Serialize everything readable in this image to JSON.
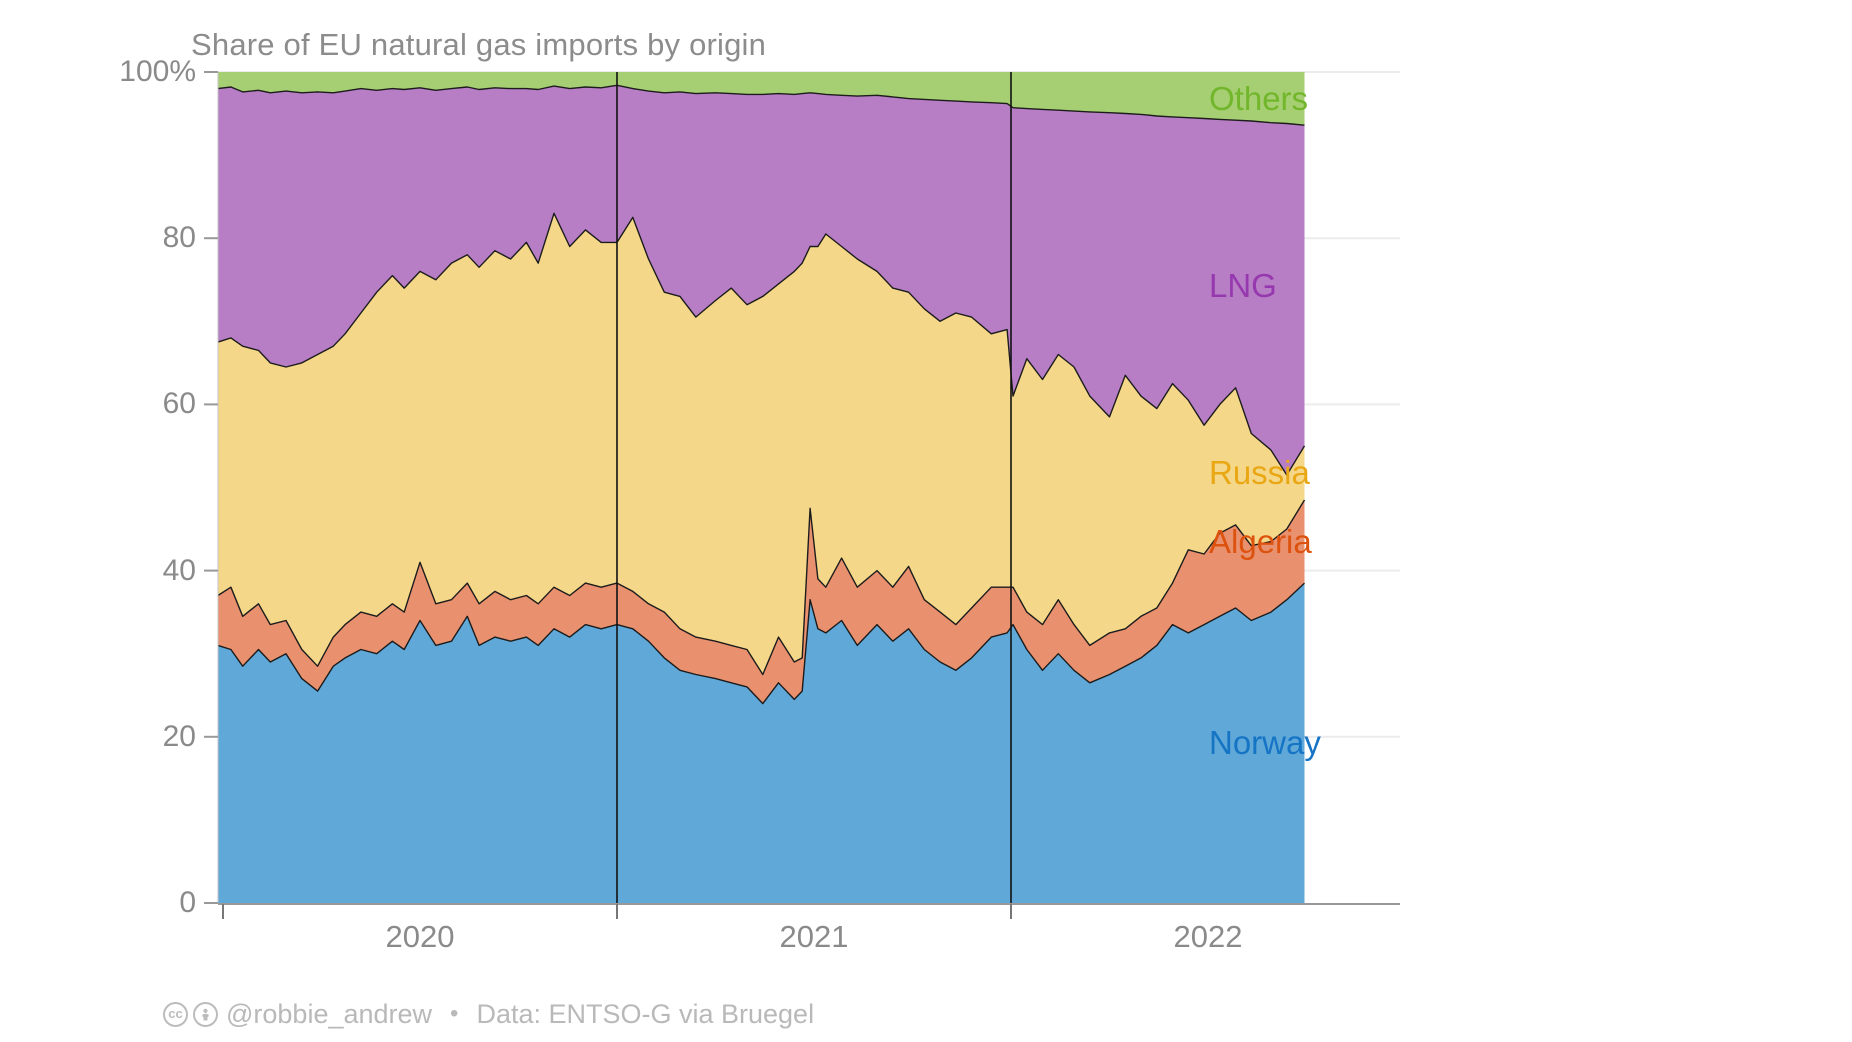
{
  "title": "Share of EU natural gas imports by origin",
  "footer": {
    "cc_label": "cc",
    "handle": "@robbie_andrew",
    "separator": "•",
    "source": "Data: ENTSO-G via Bruegel"
  },
  "colors": {
    "title_text": "#8c8c8c",
    "axis_text": "#8a8a8a",
    "footer_text": "#b9b9b9",
    "gridline": "#ececec",
    "axis_line": "#999999",
    "boundary_stroke": "#1c1c1c",
    "year_divider": "#111111"
  },
  "chart_data": {
    "type": "area",
    "stacked": true,
    "title": "Share of EU natural gas imports by origin",
    "ylabel": "%",
    "ylim": [
      0,
      100
    ],
    "xlim": [
      2019.987,
      2022.745
    ],
    "grid": true,
    "legend_position": "right",
    "yticks": [
      {
        "label": "0",
        "value": 0
      },
      {
        "label": "20",
        "value": 20
      },
      {
        "label": "40",
        "value": 40
      },
      {
        "label": "60",
        "value": 60
      },
      {
        "label": "80",
        "value": 80
      },
      {
        "label": "100%",
        "value": 100
      }
    ],
    "xticks": [
      {
        "label": "2020",
        "value": 2020.5
      },
      {
        "label": "2021",
        "value": 2021.5
      },
      {
        "label": "2022",
        "value": 2022.5
      }
    ],
    "axis_tick_x": [
      2020,
      2021,
      2022
    ],
    "year_lines": [
      2021,
      2022
    ],
    "x": [
      2019.987,
      2020.02,
      2020.05,
      2020.09,
      2020.12,
      2020.16,
      2020.2,
      2020.24,
      2020.28,
      2020.31,
      2020.35,
      2020.39,
      2020.43,
      2020.46,
      2020.5,
      2020.54,
      2020.58,
      2020.62,
      2020.65,
      2020.69,
      2020.73,
      2020.77,
      2020.8,
      2020.84,
      2020.88,
      2020.92,
      2020.96,
      2021.0,
      2021.04,
      2021.08,
      2021.12,
      2021.16,
      2021.2,
      2021.25,
      2021.29,
      2021.33,
      2021.37,
      2021.41,
      2021.45,
      2021.47,
      2021.49,
      2021.51,
      2021.53,
      2021.57,
      2021.61,
      2021.66,
      2021.7,
      2021.74,
      2021.78,
      2021.82,
      2021.86,
      2021.9,
      2021.95,
      2021.99,
      2022.005,
      2022.04,
      2022.08,
      2022.12,
      2022.16,
      2022.2,
      2022.25,
      2022.29,
      2022.33,
      2022.37,
      2022.41,
      2022.45,
      2022.49,
      2022.53,
      2022.57,
      2022.61,
      2022.66,
      2022.7,
      2022.745
    ],
    "series": [
      {
        "name": "Norway",
        "color": "#5FA8D8",
        "label_color": "#1674C5",
        "values": [
          31,
          30.5,
          28.5,
          30.5,
          29,
          30,
          27,
          25.5,
          28.5,
          29.5,
          30.5,
          30,
          31.5,
          30.5,
          34,
          31,
          31.5,
          34.5,
          31,
          32,
          31.5,
          32,
          31,
          33,
          32,
          33.5,
          33,
          33.5,
          33,
          31.5,
          29.5,
          28,
          27.5,
          27,
          26.5,
          26,
          24,
          26.5,
          24.5,
          25.5,
          36.5,
          33,
          32.5,
          34,
          31,
          33.5,
          31.5,
          33,
          30.5,
          29,
          28,
          29.5,
          32,
          32.5,
          33.5,
          30.5,
          28,
          30,
          28,
          26.5,
          27.5,
          28.5,
          29.5,
          31,
          33.5,
          32.5,
          33.5,
          34.5,
          35.5,
          34,
          35,
          36.5,
          38.5
        ]
      },
      {
        "name": "Algeria",
        "color": "#E9916E",
        "label_color": "#DC520E",
        "values": [
          6,
          7.5,
          6,
          5.5,
          4.5,
          4,
          3.5,
          3,
          3.5,
          4,
          4.5,
          4.5,
          4.5,
          4.5,
          7,
          5,
          5,
          4,
          5,
          5.5,
          5,
          5,
          5,
          5,
          5,
          5,
          5,
          5,
          4.5,
          4.5,
          5.5,
          5,
          4.5,
          4.5,
          4.5,
          4.5,
          3.5,
          5.5,
          4.5,
          4,
          11,
          6,
          5.5,
          7.5,
          7,
          6.5,
          6.5,
          7.5,
          6,
          6,
          5.5,
          6,
          6,
          5.5,
          4.5,
          4.5,
          5.5,
          6.5,
          5.5,
          4.5,
          5,
          4.5,
          5,
          4.5,
          5,
          10,
          8.5,
          10,
          10,
          9,
          8.5,
          8.5,
          10
        ]
      },
      {
        "name": "Russia",
        "color": "#F4D788",
        "label_color": "#EAA714",
        "values": [
          30.5,
          30,
          32.5,
          30.5,
          31.5,
          30.5,
          34.5,
          37.5,
          35,
          35,
          36,
          39,
          39.5,
          39,
          35,
          39,
          40.5,
          39.5,
          40.5,
          41,
          41,
          42.5,
          41,
          45,
          42,
          42.5,
          41.5,
          41,
          45,
          41.5,
          38.5,
          40,
          38.5,
          41,
          43,
          41.5,
          45.5,
          42.5,
          47,
          47.5,
          31.5,
          40,
          42.5,
          37.5,
          39.5,
          36,
          36,
          33,
          35,
          35,
          37.5,
          35,
          30.5,
          31,
          23,
          30.5,
          29.5,
          29.5,
          31,
          30,
          26,
          30.5,
          26.5,
          24,
          24,
          18,
          15.5,
          15.5,
          16.5,
          13.5,
          11,
          6.5,
          6.5
        ]
      },
      {
        "name": "LNG",
        "color": "#B77EC6",
        "label_color": "#9639AE",
        "values": [
          30.5,
          30.2,
          30.6,
          31.3,
          32.5,
          33.2,
          32.5,
          31.6,
          30.5,
          29.2,
          27,
          24.3,
          22.5,
          23.9,
          22.1,
          22.8,
          21,
          20.2,
          21.4,
          19.6,
          20.5,
          18.5,
          20.9,
          15.3,
          19,
          17.2,
          18.6,
          18.9,
          15.5,
          20.2,
          24,
          24.6,
          26.9,
          25,
          23.4,
          25.3,
          24.3,
          22.9,
          21.3,
          20.4,
          18.5,
          18.4,
          16.8,
          18.2,
          19.6,
          21.2,
          23,
          23.3,
          25.2,
          26.6,
          25.5,
          25.9,
          27.8,
          27.2,
          34.7,
          30.1,
          32.5,
          29.4,
          30.8,
          34.2,
          36.6,
          31.5,
          33.9,
          35.2,
          32.1,
          34,
          36.9,
          34.3,
          32.2,
          37.6,
          39.4,
          42.3,
          38.6
        ]
      },
      {
        "name": "Others",
        "color": "#A6CE72",
        "label_color": "#72B62C",
        "values": [
          2,
          1.8,
          2.4,
          2.2,
          2.5,
          2.3,
          2.5,
          2.4,
          2.5,
          2.3,
          2,
          2.2,
          2,
          2.1,
          1.9,
          2.2,
          2,
          1.8,
          2.1,
          1.9,
          2,
          2,
          2.1,
          1.7,
          2,
          1.8,
          1.9,
          1.6,
          2,
          2.3,
          2.5,
          2.4,
          2.6,
          2.5,
          2.6,
          2.7,
          2.7,
          2.6,
          2.7,
          2.6,
          2.5,
          2.6,
          2.7,
          2.8,
          2.9,
          2.8,
          3,
          3.2,
          3.3,
          3.4,
          3.5,
          3.6,
          3.7,
          3.8,
          4.3,
          4.4,
          4.5,
          4.6,
          4.7,
          4.8,
          4.9,
          5,
          5.1,
          5.3,
          5.4,
          5.5,
          5.6,
          5.7,
          5.8,
          5.9,
          6.1,
          6.2,
          6.4
        ]
      }
    ]
  }
}
